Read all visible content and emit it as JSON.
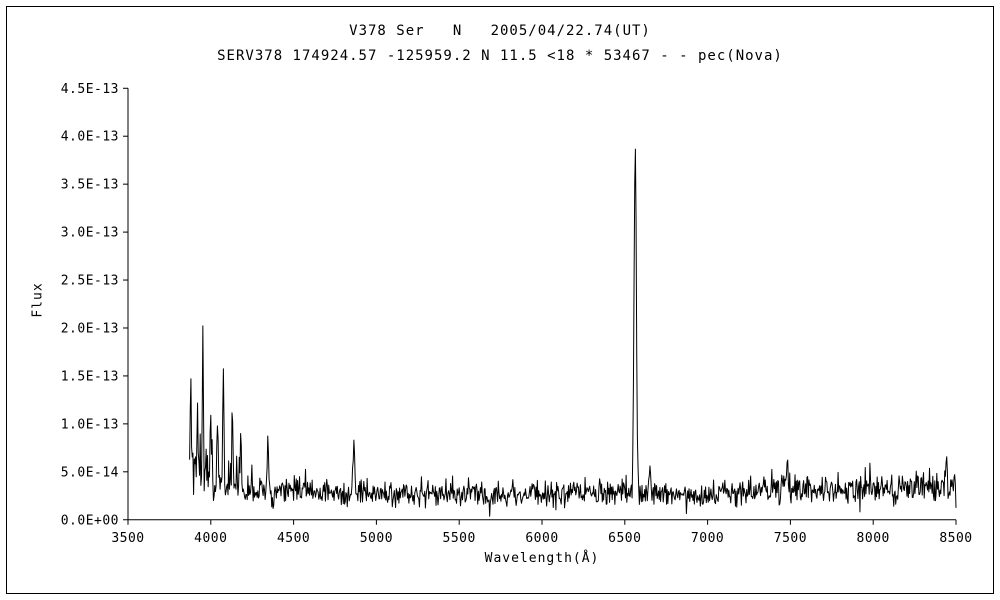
{
  "chart_data": {
    "type": "line",
    "title": "V378 Ser   N   2005/04/22.74(UT)",
    "subtitle": "SERV378 174924.57 -125959.2 N 11.5 <18 * 53467 - - pec(Nova)",
    "xlabel": "Wavelength(Å)",
    "ylabel": "Flux",
    "xlim": [
      3500,
      8500
    ],
    "ylim": [
      0,
      4.5e-13
    ],
    "grid": false,
    "legend": "none",
    "line_color": "#000000",
    "axis_color": "#000000",
    "background_color": "#ffffff",
    "x_ticks": [
      3500,
      4000,
      4500,
      5000,
      5500,
      6000,
      6500,
      7000,
      7500,
      8000,
      8500
    ],
    "y_ticks": [
      {
        "value": 0,
        "label": "0.0E+00"
      },
      {
        "value": 5e-14,
        "label": "5.0E-14"
      },
      {
        "value": 1e-13,
        "label": "1.0E-13"
      },
      {
        "value": 1.5e-13,
        "label": "1.5E-13"
      },
      {
        "value": 2e-13,
        "label": "2.0E-13"
      },
      {
        "value": 2.5e-13,
        "label": "2.5E-13"
      },
      {
        "value": 3e-13,
        "label": "3.0E-13"
      },
      {
        "value": 3.5e-13,
        "label": "3.5E-13"
      },
      {
        "value": 4e-13,
        "label": "4.0E-13"
      },
      {
        "value": 4.5e-13,
        "label": "4.5E-13"
      }
    ],
    "spectrum_model": {
      "comment_summary": "Noisy nova spectrum: continuum ~2.7e-14, dense spike forest 3870-4400 up to ~1.95e-13, H-beta ~4861 peaking ~9e-14, strong H-alpha emission at 6563 peaking ~4.0e-13, slightly elevated noise redward of 7300, spectrum spans 3872-8500 A",
      "x_start": 3872,
      "x_end": 8500,
      "x_step": 4,
      "seed": 7,
      "baseline": 2.7e-14,
      "noise_sigma": 6.5e-15,
      "y_min": 2e-15,
      "noise_regions": [
        {
          "range": [
            3872,
            4400
          ],
          "extra_sigma": 3.2e-14,
          "decay": true
        },
        {
          "range": [
            4400,
            4900
          ],
          "extra_sigma": 6e-15,
          "decay": true
        },
        {
          "range": [
            7300,
            8500
          ],
          "extra_sigma": 6e-15,
          "decay": false
        },
        {
          "range": [
            8250,
            8500
          ],
          "extra_sigma": 8e-15,
          "decay": false
        }
      ],
      "peaks": [
        {
          "center": 3878,
          "height": 1.15e-13,
          "sigma": 3
        },
        {
          "center": 3920,
          "height": 7e-14,
          "sigma": 3
        },
        {
          "center": 3952,
          "height": 1.6e-13,
          "sigma": 3
        },
        {
          "center": 3998,
          "height": 8e-14,
          "sigma": 3
        },
        {
          "center": 4040,
          "height": 6.5e-14,
          "sigma": 3
        },
        {
          "center": 4075,
          "height": 1.25e-13,
          "sigma": 3
        },
        {
          "center": 4130,
          "height": 6e-14,
          "sigma": 3
        },
        {
          "center": 4180,
          "height": 5e-14,
          "sigma": 3
        },
        {
          "center": 4345,
          "height": 7.5e-14,
          "sigma": 4
        },
        {
          "center": 4865,
          "height": 5.5e-14,
          "sigma": 5
        },
        {
          "center": 6563,
          "height": 3.68e-13,
          "sigma": 7
        },
        {
          "center": 6650,
          "height": 2.5e-14,
          "sigma": 5
        },
        {
          "center": 7480,
          "height": 3e-14,
          "sigma": 5
        },
        {
          "center": 8440,
          "height": 3e-14,
          "sigma": 5
        }
      ]
    }
  }
}
